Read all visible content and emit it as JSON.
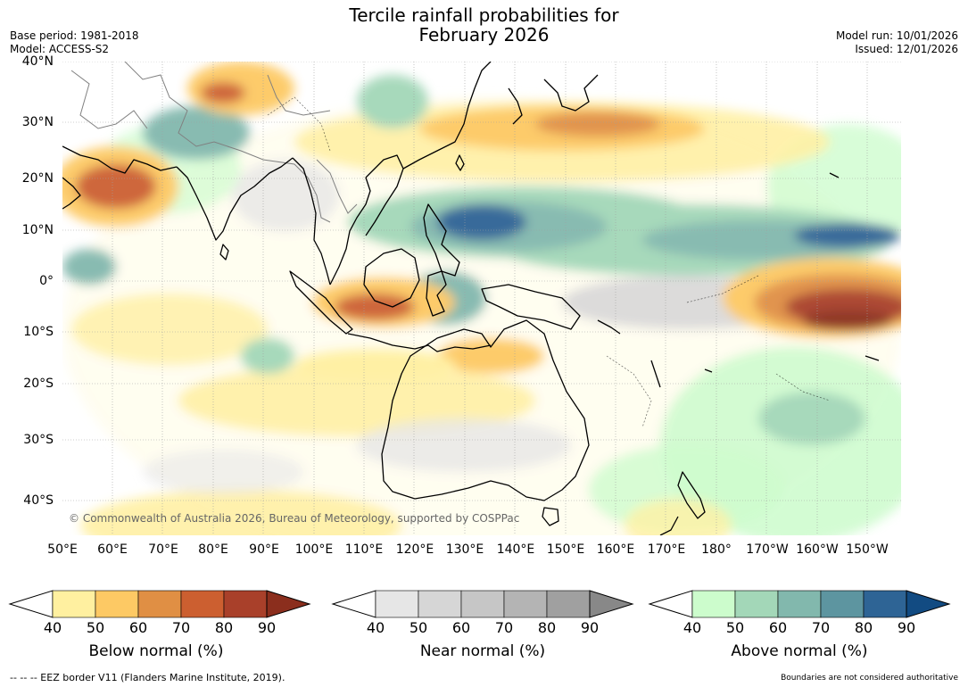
{
  "title": {
    "line1": "Tercile rainfall probabilities for",
    "line2": "February 2026"
  },
  "meta": {
    "base_period": "Base period: 1981-2018",
    "model": "Model: ACCESS-S2",
    "model_run": "Model run: 10/01/2026",
    "issued": "Issued: 12/01/2026"
  },
  "map": {
    "lat_labels": [
      "40°N",
      "30°N",
      "20°N",
      "10°N",
      "0°",
      "10°S",
      "20°S",
      "30°S",
      "40°S"
    ],
    "lon_labels": [
      "50°E",
      "60°E",
      "70°E",
      "80°E",
      "90°E",
      "100°E",
      "110°E",
      "120°E",
      "130°E",
      "140°E",
      "150°E",
      "160°E",
      "170°E",
      "180°",
      "170°W",
      "160°W",
      "150°W"
    ],
    "copyright": "© Commonwealth of Australia 2026, Bureau of Meteorology, supported by COSPPac",
    "colors": {
      "land_outline": "#000000",
      "border": "#808080",
      "grid": "#a0a0a0"
    }
  },
  "colorbars": [
    {
      "name": "Below normal (%)",
      "ticks": [
        "40",
        "50",
        "60",
        "70",
        "80",
        "90"
      ],
      "colors": [
        "#fff0a0",
        "#fdc964",
        "#e08f44",
        "#cc5f30",
        "#a9402a",
        "#8b2e1d"
      ]
    },
    {
      "name": "Near normal (%)",
      "ticks": [
        "40",
        "50",
        "60",
        "70",
        "80",
        "90"
      ],
      "colors": [
        "#e6e6e6",
        "#d6d6d6",
        "#c6c6c6",
        "#b4b4b4",
        "#a0a0a0",
        "#888888"
      ]
    },
    {
      "name": "Above normal (%)",
      "ticks": [
        "40",
        "50",
        "60",
        "70",
        "80",
        "90"
      ],
      "colors": [
        "#ccfccc",
        "#a3d7b8",
        "#82b8ad",
        "#5d95a0",
        "#2e6495",
        "#124b82"
      ]
    }
  ],
  "footer": {
    "eez": "--  --  -- EEZ border V11 (Flanders Marine Institute, 2019).",
    "disclaimer": "Boundaries are not considered authoritative"
  }
}
